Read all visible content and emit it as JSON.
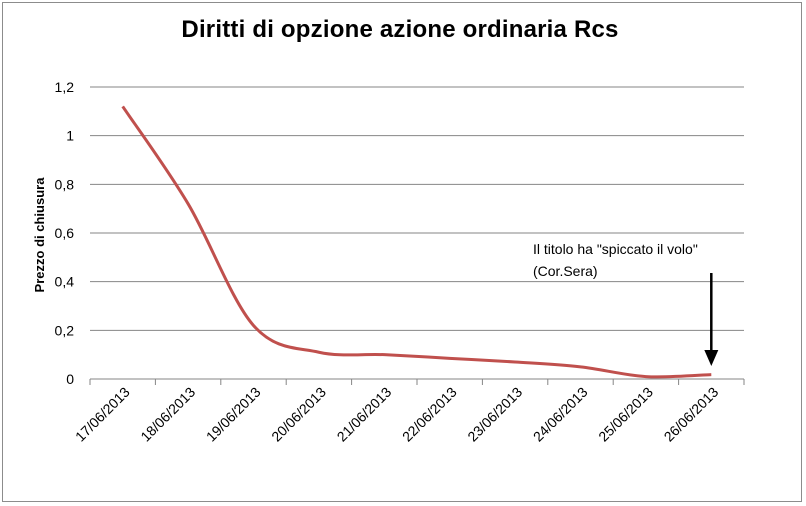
{
  "chart_data": {
    "type": "line",
    "title": "Diritti di opzione azione ordinaria Rcs",
    "xlabel": "",
    "ylabel": "Prezzo di chiusura",
    "categories": [
      "17/06/2013",
      "18/06/2013",
      "19/06/2013",
      "20/06/2013",
      "21/06/2013",
      "22/06/2013",
      "23/06/2013",
      "24/06/2013",
      "25/06/2013",
      "26/06/2013"
    ],
    "series": [
      {
        "values": [
          1.12,
          0.72,
          0.22,
          0.11,
          0.1,
          0.085,
          0.07,
          0.05,
          0.01,
          0.018
        ]
      }
    ],
    "ylim": [
      0,
      1.2
    ],
    "yticks": [
      0,
      0.2,
      0.4,
      0.6,
      0.8,
      1,
      1.2
    ],
    "ytick_labels": [
      "0",
      "0,2",
      "0,4",
      "0,6",
      "0,8",
      "1",
      "1,2"
    ],
    "grid": true,
    "line_color": "#c0504d",
    "annotation": {
      "line1": "Il titolo ha \"spiccato il volo\"",
      "line2": "(Cor.Sera)",
      "target_category": "26/06/2013"
    }
  }
}
